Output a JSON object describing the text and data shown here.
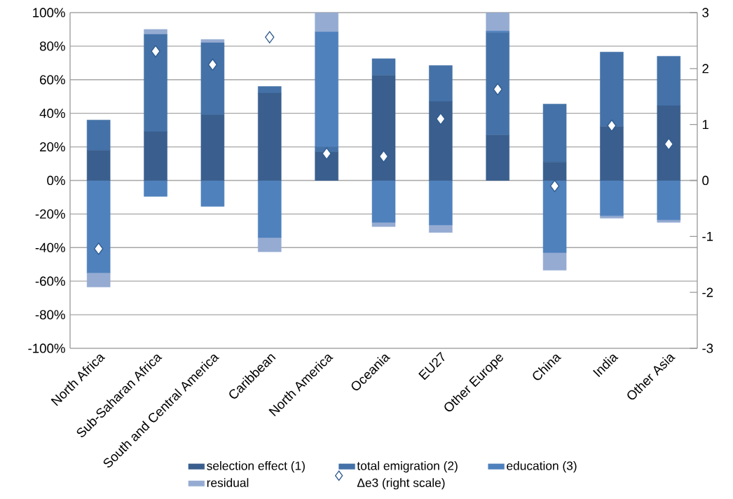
{
  "chart_data": {
    "type": "bar",
    "stacked": true,
    "categories": [
      "North Africa",
      "Sub-Saharan Africa",
      "South and Central America",
      "Caribbean",
      "North America",
      "Oceania",
      "EU27",
      "Other Europe",
      "China",
      "India",
      "Other Asia"
    ],
    "series": [
      {
        "name": "selection effect (1)",
        "color": "#3a5f8e",
        "values": [
          18,
          29,
          39,
          52,
          17,
          62.5,
          47,
          27,
          11,
          32,
          44.5
        ]
      },
      {
        "name": "total emigration  (2)",
        "color": "#4472a8",
        "values": [
          18,
          58,
          43,
          4,
          3,
          10,
          21.5,
          61,
          34.5,
          44.5,
          29.5
        ]
      },
      {
        "name": "education (3)",
        "color": "#4f81bd",
        "values": [
          -55,
          -9.5,
          -15.5,
          -34,
          68.5,
          -25,
          -26.5,
          1,
          -43,
          -21,
          -23.5
        ]
      },
      {
        "name": "residual",
        "color": "#95abd2",
        "values": [
          -8.5,
          3,
          2,
          -8.5,
          11.5,
          -2.5,
          -4.5,
          11,
          -10.5,
          -1.5,
          -1.5
        ]
      },
      {
        "name": "Δe3 (right scale)",
        "type": "scatter",
        "axis": "y2",
        "marker": "diamond",
        "color": "#2e5a8e",
        "values": [
          -1.22,
          2.31,
          2.07,
          2.56,
          0.48,
          0.43,
          1.1,
          1.63,
          -0.1,
          0.98,
          0.65
        ]
      }
    ],
    "ylim": [
      -100,
      100
    ],
    "yticks": [
      {
        "value": -100,
        "label": "-100%"
      },
      {
        "value": -80,
        "label": "-80%"
      },
      {
        "value": -60,
        "label": "-60%"
      },
      {
        "value": -40,
        "label": "-40%"
      },
      {
        "value": -20,
        "label": "-20%"
      },
      {
        "value": 0,
        "label": "0%"
      },
      {
        "value": 20,
        "label": "20%"
      },
      {
        "value": 40,
        "label": "40%"
      },
      {
        "value": 60,
        "label": "60%"
      },
      {
        "value": 80,
        "label": "80%"
      },
      {
        "value": 100,
        "label": "100%"
      }
    ],
    "y2lim": [
      -3,
      3
    ],
    "y2ticks": [
      -3,
      -2,
      -1,
      0,
      1,
      2,
      3
    ],
    "grid": "y",
    "legend": "bottom"
  }
}
